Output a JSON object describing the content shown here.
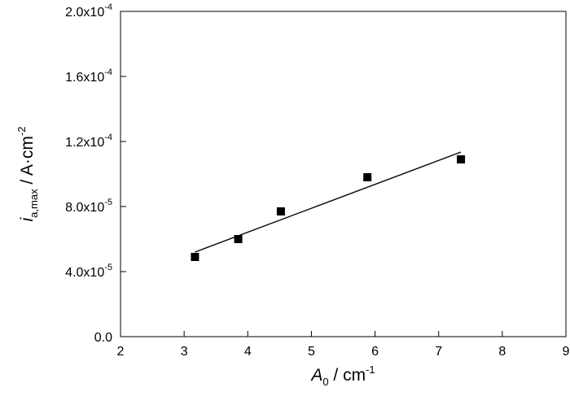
{
  "chart_data": {
    "type": "scatter",
    "title": "",
    "xlabel": {
      "var": "A",
      "sub": "0",
      "unit": " / cm",
      "sup": "-1"
    },
    "ylabel": {
      "var": "i",
      "sub": "a,max",
      "unit": " / A·cm",
      "sup": "-2"
    },
    "xlim": [
      2,
      9
    ],
    "ylim": [
      0,
      0.0002
    ],
    "x_ticks": [
      2,
      3,
      4,
      5,
      6,
      7,
      8,
      9
    ],
    "x_tick_labels": [
      "2",
      "3",
      "4",
      "5",
      "6",
      "7",
      "8",
      "9"
    ],
    "y_ticks": [
      0,
      4e-05,
      8e-05,
      0.00012,
      0.00016,
      0.0002
    ],
    "y_tick_labels": [
      {
        "mant": "0.0",
        "exp": ""
      },
      {
        "mant": "4.0x10",
        "exp": "-5"
      },
      {
        "mant": "8.0x10",
        "exp": "-5"
      },
      {
        "mant": "1.2x10",
        "exp": "-4"
      },
      {
        "mant": "1.6x10",
        "exp": "-4"
      },
      {
        "mant": "2.0x10",
        "exp": "-4"
      }
    ],
    "grid": false,
    "series": [
      {
        "marker": "square",
        "color": "#000000",
        "x": [
          3.17,
          3.85,
          4.52,
          5.88,
          7.35
        ],
        "y": [
          4.9e-05,
          6e-05,
          7.7e-05,
          9.8e-05,
          0.000109
        ]
      }
    ],
    "fit_line": {
      "x": [
        3.17,
        7.35
      ],
      "y": [
        5.2e-05,
        0.0001135
      ],
      "color": "#000000"
    }
  }
}
